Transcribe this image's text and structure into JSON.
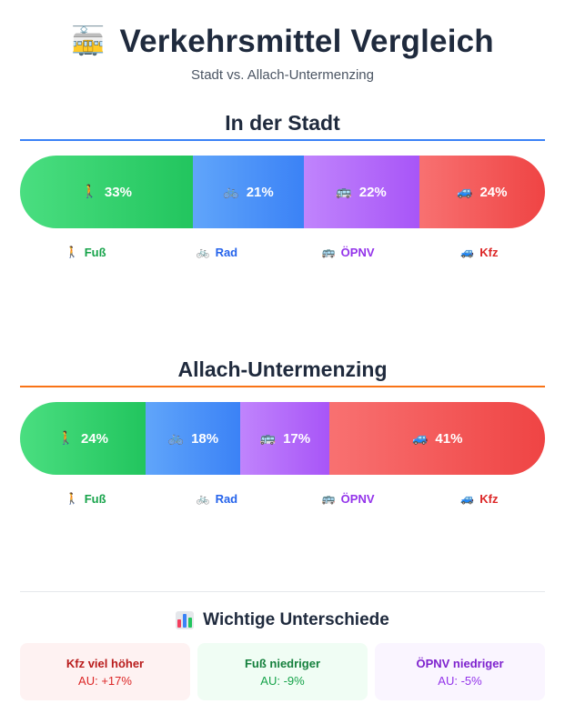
{
  "header": {
    "icon": "tram-icon",
    "title": "Verkehrsmittel Vergleich",
    "subtitle": "Stadt vs. Allach-Untermenzing"
  },
  "colors": {
    "fuss": "#22c55e",
    "rad": "#3b82f6",
    "oepnv": "#a855f7",
    "kfz": "#ef4444",
    "stadt_rule": "#3b82f6",
    "allach_rule": "#f97316"
  },
  "legend": [
    {
      "icon": "🚶",
      "label": "Fuß",
      "color": "#16a34a"
    },
    {
      "icon": "🚲",
      "label": "Rad",
      "color": "#2563eb"
    },
    {
      "icon": "🚌",
      "label": "ÖPNV",
      "color": "#9333ea"
    },
    {
      "icon": "🚙",
      "label": "Kfz",
      "color": "#dc2626"
    }
  ],
  "chart_data": [
    {
      "type": "bar",
      "title": "In der Stadt",
      "categories": [
        "Fuß",
        "Rad",
        "ÖPNV",
        "Kfz"
      ],
      "values": [
        33,
        21,
        22,
        24
      ],
      "labels": [
        "33%",
        "21%",
        "22%",
        "24%"
      ],
      "icons": [
        "🚶",
        "🚲",
        "🚌",
        "🚙"
      ]
    },
    {
      "type": "bar",
      "title": "Allach-Untermenzing",
      "categories": [
        "Fuß",
        "Rad",
        "ÖPNV",
        "Kfz"
      ],
      "values": [
        24,
        18,
        17,
        41
      ],
      "labels": [
        "24%",
        "18%",
        "17%",
        "41%"
      ],
      "icons": [
        "🚶",
        "🚲",
        "🚌",
        "🚙"
      ]
    }
  ],
  "differences": {
    "icon": "bar-chart-icon",
    "title": "Wichtige Unterschiede",
    "cards": [
      {
        "title": "Kfz viel höher",
        "value": "AU: +17%",
        "bg": "#fef2f2",
        "title_color": "#b91c1c",
        "value_color": "#dc2626"
      },
      {
        "title": "Fuß niedriger",
        "value": "AU: -9%",
        "bg": "#f0fdf4",
        "title_color": "#15803d",
        "value_color": "#16a34a"
      },
      {
        "title": "ÖPNV niedriger",
        "value": "AU: -5%",
        "bg": "#faf5ff",
        "title_color": "#7e22ce",
        "value_color": "#9333ea"
      }
    ]
  }
}
